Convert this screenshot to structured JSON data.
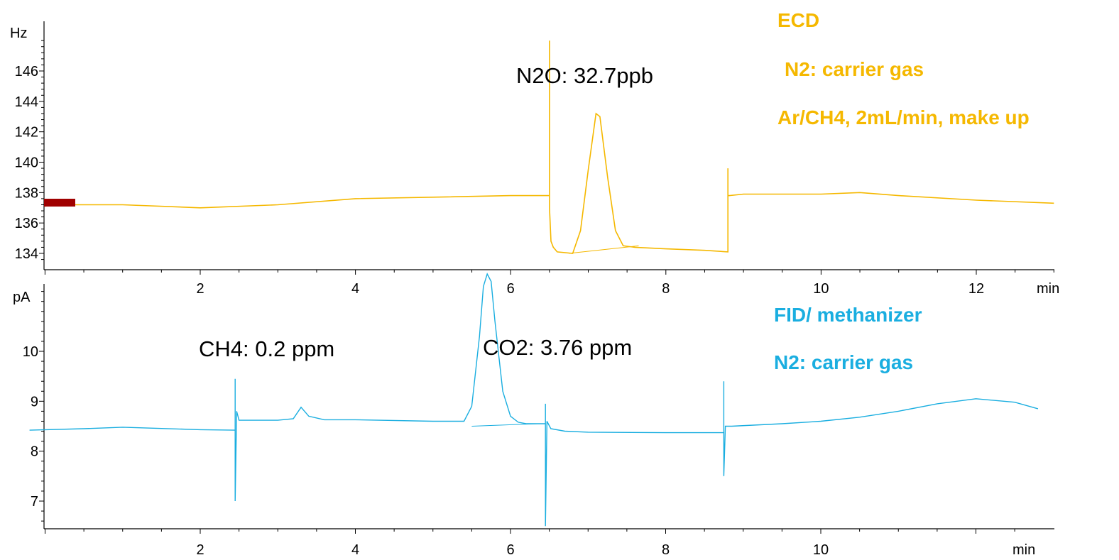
{
  "chart_data": [
    {
      "type": "line",
      "detector_labels": [
        "ECD",
        "N2: carrier gas",
        "Ar/CH4, 2mL/min, make up"
      ],
      "color": "#f5b800",
      "start_highlight_color": "#a00000",
      "y_unit": "Hz",
      "x_unit": "min",
      "xlim": [
        0,
        13
      ],
      "ylim": [
        133.5,
        148
      ],
      "x_ticks": [
        2,
        4,
        6,
        8,
        10,
        12
      ],
      "y_ticks": [
        134,
        136,
        138,
        140,
        142,
        144,
        146
      ],
      "annotation": "N2O: 32.7ppb",
      "series": [
        {
          "x": [
            0,
            0.2,
            0.4,
            1,
            2,
            3,
            4,
            5,
            6,
            6.5,
            6.5,
            6.5,
            6.52,
            6.55,
            6.6,
            6.8,
            6.9,
            7.0,
            7.1,
            7.15,
            7.25,
            7.35,
            7.45,
            7.6,
            8.0,
            8.5,
            8.8,
            8.8,
            8.8,
            8.82,
            9.0,
            10,
            10.5,
            11,
            12,
            13
          ],
          "y": [
            137.1,
            137.3,
            137.2,
            137.2,
            137.0,
            137.2,
            137.6,
            137.7,
            137.8,
            137.8,
            148.0,
            137.0,
            134.8,
            134.4,
            134.1,
            134.0,
            135.5,
            139.5,
            143.2,
            143.0,
            139.0,
            135.5,
            134.5,
            134.4,
            134.3,
            134.2,
            134.1,
            139.6,
            137.8,
            137.8,
            137.9,
            137.9,
            138.0,
            137.8,
            137.5,
            137.3
          ]
        }
      ],
      "baseline_segment": {
        "x": [
          6.75,
          7.65
        ],
        "y": [
          134.0,
          134.5
        ]
      }
    },
    {
      "type": "line",
      "detector_labels": [
        "FID/ methanizer",
        "N2: carrier gas"
      ],
      "color": "#1aaee0",
      "y_unit": "pA",
      "x_unit": "min",
      "xlim": [
        -0.2,
        12.8
      ],
      "ylim": [
        6.6,
        11.8
      ],
      "x_ticks": [
        2,
        4,
        6,
        8,
        10
      ],
      "y_ticks": [
        7,
        8,
        9,
        10
      ],
      "annotations": [
        "CH4: 0.2 ppm",
        "CO2: 3.76 ppm"
      ],
      "series": [
        {
          "x": [
            -0.2,
            0.5,
            1,
            2,
            2.45,
            2.45,
            2.45,
            2.47,
            2.5,
            2.6,
            3.0,
            3.2,
            3.3,
            3.4,
            3.6,
            4.0,
            5.0,
            5.4,
            5.5,
            5.6,
            5.65,
            5.7,
            5.75,
            5.8,
            5.9,
            6.0,
            6.1,
            6.2,
            6.45,
            6.45,
            6.45,
            6.47,
            6.52,
            6.7,
            7,
            8,
            8.75,
            8.75,
            8.75,
            8.77,
            8.85,
            9.5,
            10,
            10.5,
            11,
            11.5,
            12,
            12.5,
            12.8
          ],
          "y": [
            8.42,
            8.45,
            8.48,
            8.43,
            8.42,
            9.45,
            7.0,
            8.8,
            8.62,
            8.62,
            8.62,
            8.65,
            8.88,
            8.7,
            8.63,
            8.63,
            8.6,
            8.6,
            8.9,
            10.3,
            11.3,
            11.55,
            11.4,
            10.6,
            9.2,
            8.7,
            8.58,
            8.55,
            8.55,
            8.95,
            6.5,
            8.6,
            8.45,
            8.4,
            8.38,
            8.37,
            8.37,
            9.4,
            7.5,
            8.5,
            8.5,
            8.55,
            8.6,
            8.68,
            8.8,
            8.95,
            9.05,
            8.98,
            8.85
          ]
        }
      ],
      "baseline_segment": {
        "x": [
          5.5,
          6.35
        ],
        "y": [
          8.5,
          8.55
        ]
      }
    }
  ]
}
